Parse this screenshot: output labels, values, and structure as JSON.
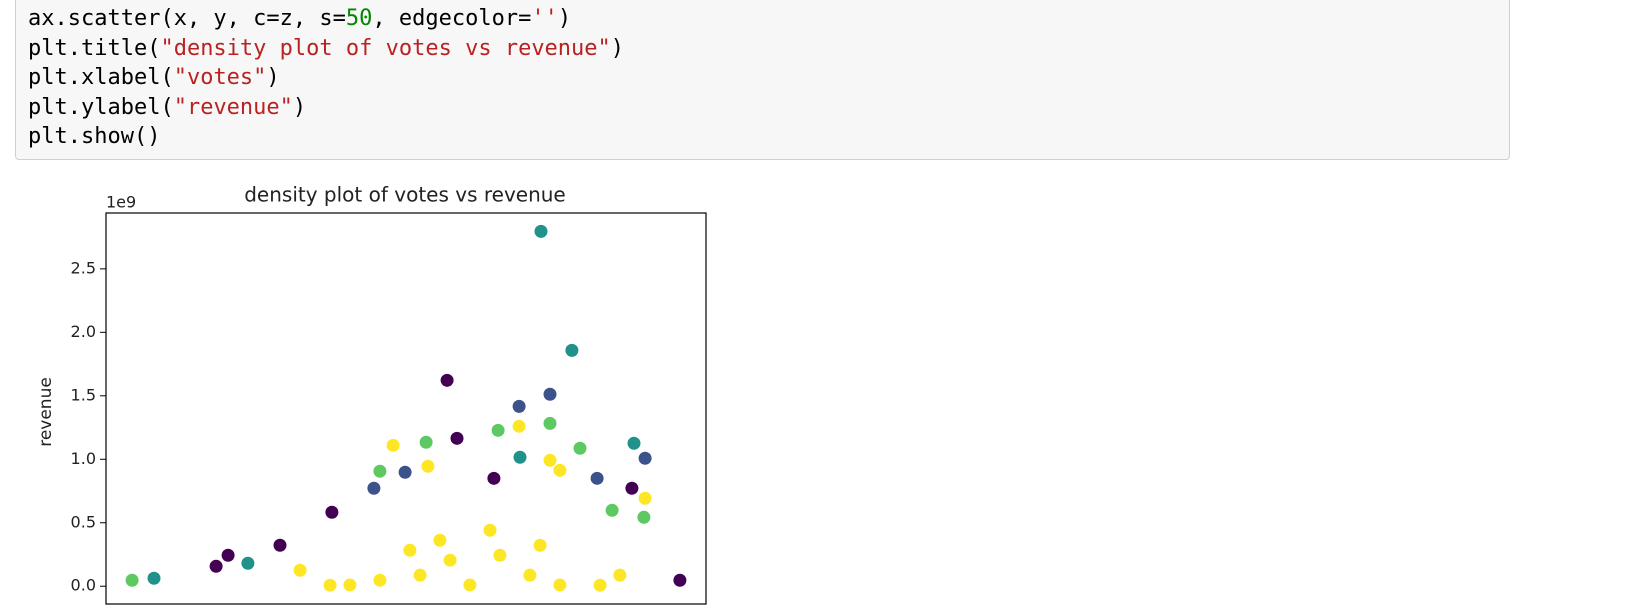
{
  "code": {
    "lines": [
      [
        "ax.scatter(x, y, c=z, s=",
        "50",
        ", edgecolor=",
        "''",
        ")"
      ],
      [
        "plt.title(",
        "\"density plot of votes vs revenue\"",
        ")"
      ],
      [
        "plt.xlabel(",
        "\"votes\"",
        ")"
      ],
      [
        "plt.ylabel(",
        "\"revenue\"",
        ")"
      ],
      [
        "plt.show()"
      ]
    ]
  },
  "chart_data": {
    "type": "scatter",
    "title": "density plot of votes vs revenue",
    "y_label": "revenue",
    "y_offset": "1e9",
    "xlim": [
      0,
      2000000
    ],
    "ylim": [
      -140000000,
      2940000000
    ],
    "yticks": [
      {
        "value": 0,
        "label": "0.0"
      },
      {
        "value": 500000000,
        "label": "0.5"
      },
      {
        "value": 1000000000,
        "label": "1.0"
      },
      {
        "value": 1500000000,
        "label": "1.5"
      },
      {
        "value": 2000000000,
        "label": "2.0"
      },
      {
        "value": 2500000000,
        "label": "2.5"
      }
    ],
    "series": [
      {
        "color": "#440154",
        "x": [
          1137000,
          1170000,
          407000,
          367000,
          753000,
          1913000,
          580000,
          1293000,
          1753000
        ],
        "values": [
          1622000000,
          1165000000,
          244000000,
          157000000,
          583000000,
          47000000,
          323000000,
          850000000,
          772000000
        ]
      },
      {
        "color": "#3b528b",
        "x": [
          1480000,
          1377000,
          1797000,
          893000,
          997000,
          1637000
        ],
        "values": [
          1512000000,
          1417000000,
          1008000000,
          772000000,
          898000000,
          850000000
        ]
      },
      {
        "color": "#21918c",
        "x": [
          1450000,
          1553000,
          1380000,
          1760000,
          160000,
          473000
        ],
        "values": [
          2795000000,
          1858000000,
          1016000000,
          1126000000,
          63000000,
          181000000
        ]
      },
      {
        "color": "#5ec962",
        "x": [
          1480000,
          1307000,
          1067000,
          1580000,
          1793000,
          87000,
          913000,
          1687000
        ],
        "values": [
          1283000000,
          1228000000,
          1134000000,
          1087000000,
          543000000,
          47000000,
          906000000,
          598000000
        ]
      },
      {
        "color": "#fde725",
        "x": [
          957000,
          1377000,
          1480000,
          1073000,
          1797000,
          1513000,
          647000,
          1147000,
          1313000,
          1047000,
          913000,
          1213000,
          1413000,
          1513000,
          813000,
          1647000,
          1113000,
          1280000,
          1013000,
          1447000,
          747000,
          1713000
        ],
        "values": [
          1110000000,
          1260000000,
          992000000,
          945000000,
          693000000,
          913000000,
          126000000,
          205000000,
          244000000,
          87000000,
          47000000,
          10000000,
          87000000,
          10000000,
          10000000,
          8000000,
          362000000,
          441000000,
          283000000,
          323000000,
          8000000,
          87000000
        ]
      }
    ]
  }
}
